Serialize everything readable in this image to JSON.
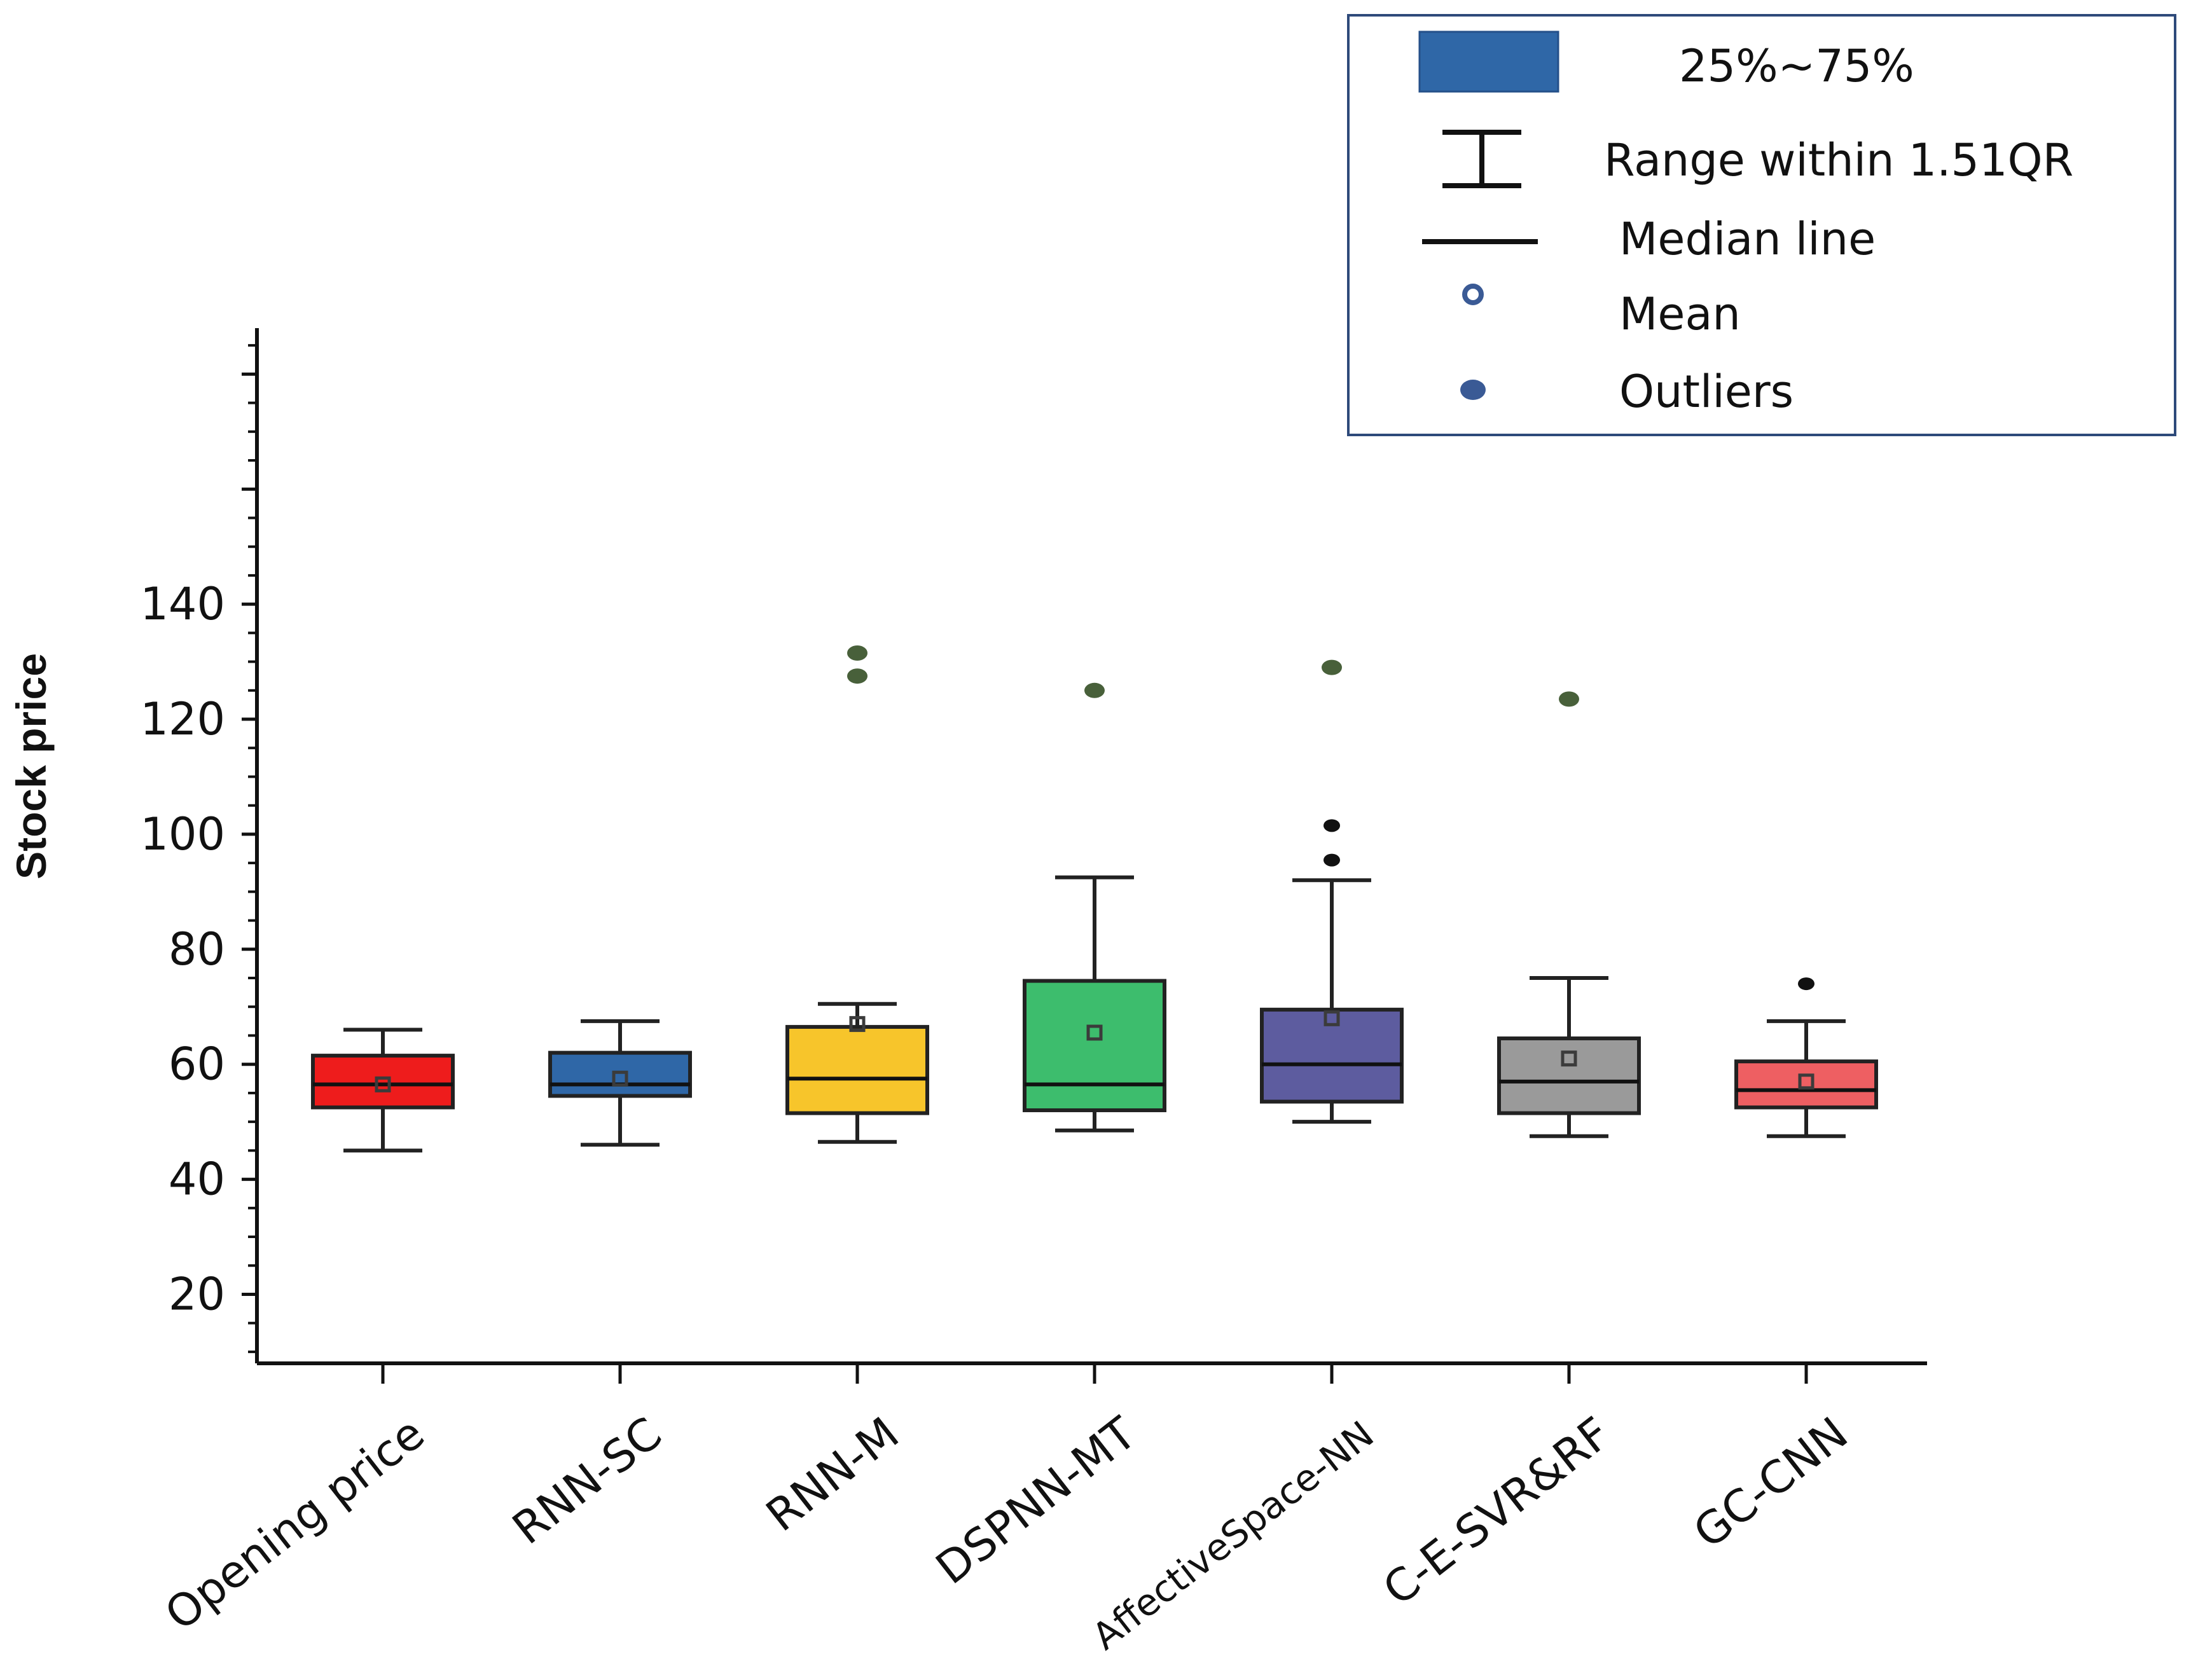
{
  "chart_data": {
    "type": "box",
    "title": "",
    "xlabel": "",
    "ylabel": "Stock price",
    "ylim": [
      8,
      188
    ],
    "yticks": [
      20,
      40,
      60,
      80,
      100,
      120,
      140
    ],
    "grid": false,
    "legend_position": "top-right",
    "categories": [
      "Opening price",
      "RNN-SC",
      "RNN-M",
      "DSPNN-MT",
      "AffectiveSpace-NN",
      "C-E-SVR&RF",
      "GC-CNN"
    ],
    "series": [
      {
        "name": "Opening price",
        "color": "#ee1c1c",
        "whisker_low": 45,
        "q1": 52.5,
        "median": 56.5,
        "q3": 61.5,
        "whisker_high": 66,
        "mean": 56.5,
        "outliers": []
      },
      {
        "name": "RNN-SC",
        "color": "#2f67a7",
        "whisker_low": 46,
        "q1": 54.5,
        "median": 56.5,
        "q3": 62,
        "whisker_high": 67.5,
        "mean": 57.5,
        "outliers": []
      },
      {
        "name": "RNN-M",
        "color": "#f7c52b",
        "whisker_low": 46.5,
        "q1": 51.5,
        "median": 57.5,
        "q3": 66.5,
        "whisker_high": 70.5,
        "mean": 67,
        "outliers": [
          127.5,
          131.5
        ]
      },
      {
        "name": "DSPNN-MT",
        "color": "#3dbd6d",
        "whisker_low": 48.5,
        "q1": 52,
        "median": 56.5,
        "q3": 74.5,
        "whisker_high": 92.5,
        "mean": 65.5,
        "outliers": [
          125
        ]
      },
      {
        "name": "AffectiveSpace-NN",
        "color": "#5d5c9f",
        "whisker_low": 50,
        "q1": 53.5,
        "median": 60,
        "q3": 69.5,
        "whisker_high": 92,
        "mean": 68,
        "outliers": [
          95.5,
          101.5,
          129
        ]
      },
      {
        "name": "C-E-SVR&RF",
        "color": "#9a9a9a",
        "whisker_low": 47.5,
        "q1": 51.5,
        "median": 57,
        "q3": 64.5,
        "whisker_high": 75,
        "mean": 61,
        "outliers": [
          123.5
        ]
      },
      {
        "name": "GC-CNN",
        "color": "#ee5f62",
        "whisker_low": 47.5,
        "q1": 52.5,
        "median": 55.5,
        "q3": 60.5,
        "whisker_high": 67.5,
        "mean": 57,
        "outliers": [
          74
        ]
      }
    ],
    "legend": {
      "box": "25%~75%",
      "range": "Range within 1.51QR",
      "median": "Median line",
      "mean": "Mean",
      "outliers": "Outliers"
    },
    "colors": {
      "axis": "#111111",
      "legend_border": "#2e4a7a",
      "legend_box": "#2f67a7",
      "mean_marker": "#3a5a95",
      "outlier_marker": "#3a5a95",
      "outlier_top": "#48603a"
    }
  }
}
